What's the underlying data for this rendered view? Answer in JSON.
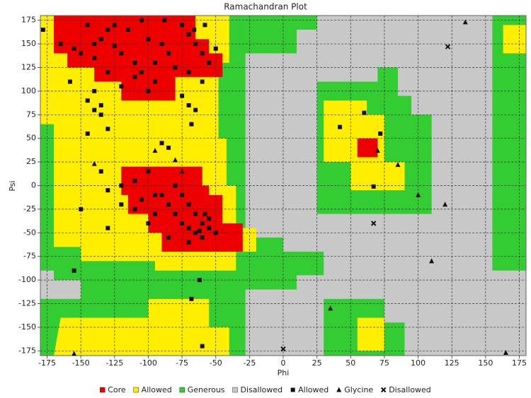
{
  "chart_data": {
    "type": "scatter",
    "title": "Ramachandran Plot",
    "x_label": "Phi",
    "y_label": "Psi",
    "xlim": [
      -180,
      180
    ],
    "ylim": [
      -180,
      180
    ],
    "xticks": [
      -175,
      -150,
      -125,
      -100,
      -75,
      -50,
      -25,
      0,
      25,
      50,
      75,
      100,
      125,
      150,
      175
    ],
    "yticks": [
      -175,
      -150,
      -125,
      -100,
      -75,
      -50,
      -25,
      0,
      25,
      50,
      75,
      100,
      125,
      150,
      175
    ],
    "grid": true,
    "regions": [
      {
        "name": "Disallowed",
        "color": "#c8c8c8",
        "polygons": [
          [
            [
              -180,
              180
            ],
            [
              180,
              180
            ],
            [
              180,
              -180
            ],
            [
              -180,
              -180
            ]
          ]
        ]
      },
      {
        "name": "Generous",
        "color": "#33cc33",
        "polygons": [
          [
            [
              -180,
              180
            ],
            [
              -15,
              180
            ],
            [
              -15,
              145
            ],
            [
              -28,
              145
            ],
            [
              -28,
              -55
            ],
            [
              0,
              -55
            ],
            [
              0,
              -70
            ],
            [
              30,
              -70
            ],
            [
              30,
              -95
            ],
            [
              10,
              -95
            ],
            [
              10,
              -110
            ],
            [
              -28,
              -110
            ],
            [
              -28,
              -180
            ],
            [
              -180,
              -180
            ],
            [
              -180,
              -120
            ],
            [
              -150,
              -120
            ],
            [
              -150,
              -100
            ],
            [
              -170,
              -100
            ],
            [
              -170,
              -90
            ],
            [
              -180,
              -90
            ]
          ],
          [
            [
              -30,
              180
            ],
            [
              25,
              180
            ],
            [
              25,
              165
            ],
            [
              10,
              165
            ],
            [
              10,
              140
            ],
            [
              -30,
              140
            ]
          ],
          [
            [
              155,
              180
            ],
            [
              180,
              180
            ],
            [
              180,
              -90
            ],
            [
              155,
              -90
            ]
          ],
          [
            [
              25,
              110
            ],
            [
              70,
              110
            ],
            [
              70,
              125
            ],
            [
              85,
              125
            ],
            [
              85,
              95
            ],
            [
              95,
              95
            ],
            [
              95,
              75
            ],
            [
              110,
              75
            ],
            [
              110,
              -30
            ],
            [
              25,
              -30
            ]
          ],
          [
            [
              30,
              -120
            ],
            [
              75,
              -120
            ],
            [
              75,
              -145
            ],
            [
              90,
              -145
            ],
            [
              90,
              -180
            ],
            [
              30,
              -180
            ]
          ]
        ]
      },
      {
        "name": "Allowed",
        "color": "#ffee00",
        "polygons": [
          [
            [
              -180,
              180
            ],
            [
              -40,
              180
            ],
            [
              -40,
              130
            ],
            [
              -48,
              130
            ],
            [
              -48,
              50
            ],
            [
              -42,
              50
            ],
            [
              -42,
              0
            ],
            [
              -35,
              0
            ],
            [
              -35,
              -45
            ],
            [
              -20,
              -45
            ],
            [
              -20,
              -70
            ],
            [
              -35,
              -70
            ],
            [
              -35,
              -90
            ],
            [
              -95,
              -90
            ],
            [
              -95,
              -80
            ],
            [
              -150,
              -80
            ],
            [
              -150,
              -65
            ],
            [
              -170,
              -65
            ],
            [
              -170,
              65
            ],
            [
              -180,
              65
            ]
          ],
          [
            [
              -170,
              -180
            ],
            [
              -40,
              -180
            ],
            [
              -40,
              -150
            ],
            [
              -55,
              -150
            ],
            [
              -55,
              -120
            ],
            [
              -100,
              -120
            ],
            [
              -100,
              -140
            ],
            [
              -165,
              -140
            ]
          ],
          [
            [
              30,
              90
            ],
            [
              62,
              90
            ],
            [
              62,
              75
            ],
            [
              75,
              75
            ],
            [
              75,
              25
            ],
            [
              90,
              25
            ],
            [
              90,
              -5
            ],
            [
              50,
              -5
            ],
            [
              50,
              25
            ],
            [
              30,
              25
            ]
          ],
          [
            [
              55,
              -140
            ],
            [
              75,
              -140
            ],
            [
              75,
              -175
            ],
            [
              55,
              -175
            ]
          ],
          [
            [
              163,
              170
            ],
            [
              180,
              170
            ],
            [
              180,
              140
            ],
            [
              163,
              140
            ]
          ]
        ]
      },
      {
        "name": "Core",
        "color": "#ee0000",
        "polygons": [
          [
            [
              -170,
              180
            ],
            [
              -65,
              180
            ],
            [
              -65,
              155
            ],
            [
              -55,
              155
            ],
            [
              -55,
              140
            ],
            [
              -45,
              140
            ],
            [
              -45,
              115
            ],
            [
              -80,
              115
            ],
            [
              -80,
              90
            ],
            [
              -120,
              90
            ],
            [
              -120,
              110
            ],
            [
              -140,
              110
            ],
            [
              -140,
              125
            ],
            [
              -160,
              125
            ],
            [
              -160,
              140
            ],
            [
              -170,
              140
            ]
          ],
          [
            [
              -120,
              20
            ],
            [
              -60,
              20
            ],
            [
              -60,
              0
            ],
            [
              -55,
              0
            ],
            [
              -55,
              -10
            ],
            [
              -45,
              -10
            ],
            [
              -45,
              -40
            ],
            [
              -30,
              -40
            ],
            [
              -30,
              -70
            ],
            [
              -90,
              -70
            ],
            [
              -90,
              -50
            ],
            [
              -100,
              -50
            ],
            [
              -100,
              -30
            ],
            [
              -115,
              -30
            ],
            [
              -115,
              -10
            ],
            [
              -120,
              -10
            ]
          ],
          [
            [
              55,
              50
            ],
            [
              70,
              50
            ],
            [
              70,
              30
            ],
            [
              55,
              30
            ]
          ]
        ]
      }
    ],
    "series": [
      {
        "name": "Allowed",
        "marker": "square",
        "color": "#111111",
        "x": [
          -178,
          -130,
          -115,
          -145,
          -140,
          -135,
          -125,
          -120,
          -110,
          -100,
          -95,
          -90,
          -85,
          -80,
          -75,
          -70,
          -65,
          -60,
          -55,
          -50,
          -60,
          -70,
          -95,
          -105,
          -140,
          -150,
          -130,
          -120,
          -110,
          -100,
          -75,
          -65,
          -70,
          -145,
          -140,
          -135,
          -145,
          -130,
          -90,
          -85,
          -135,
          -150,
          -130,
          -110,
          -100,
          -90,
          -85,
          -80,
          -75,
          -70,
          -65,
          -60,
          -55,
          -60,
          -65,
          -70,
          -75,
          -80,
          -95,
          -105,
          -120,
          -130,
          -155,
          -110,
          -55,
          -62,
          -58,
          -50,
          -70,
          -68,
          -62,
          -68,
          -60,
          -95,
          -100,
          -120,
          -85,
          60,
          42,
          72,
          67,
          -135,
          -140,
          -158,
          -155,
          -165,
          -125,
          -105,
          -88,
          -66,
          -58
        ],
        "y": [
          165,
          165,
          165,
          170,
          150,
          155,
          148,
          140,
          130,
          155,
          130,
          150,
          140,
          125,
          170,
          160,
          150,
          140,
          130,
          145,
          110,
          120,
          110,
          120,
          135,
          140,
          120,
          105,
          115,
          100,
          95,
          80,
          85,
          90,
          80,
          85,
          55,
          60,
          45,
          40,
          15,
          -25,
          -5,
          5,
          15,
          -10,
          -20,
          -30,
          -40,
          -45,
          -50,
          -40,
          -35,
          -55,
          -30,
          -20,
          -10,
          0,
          -30,
          -15,
          -20,
          -45,
          -90,
          -25,
          -45,
          -48,
          -30,
          -50,
          -60,
          65,
          -100,
          -120,
          -170,
          -10,
          -40,
          0,
          -55,
          77,
          62,
          55,
          -1,
          75,
          100,
          110,
          145,
          150,
          170,
          175,
          175,
          165,
          170
        ]
      },
      {
        "name": "Glycine",
        "marker": "triangle",
        "color": "#111111",
        "x": [
          135,
          -140,
          -95,
          -80,
          -75,
          70,
          85,
          100,
          120,
          110,
          35,
          -155,
          165
        ],
        "y": [
          173,
          23,
          37,
          27,
          15,
          37,
          22,
          -10,
          -20,
          -80,
          -130,
          -178,
          -177
        ]
      },
      {
        "name": "Disallowed",
        "marker": "cross",
        "color": "#111111",
        "x": [
          122,
          67,
          0
        ],
        "y": [
          147,
          -40,
          -173
        ]
      }
    ]
  }
}
